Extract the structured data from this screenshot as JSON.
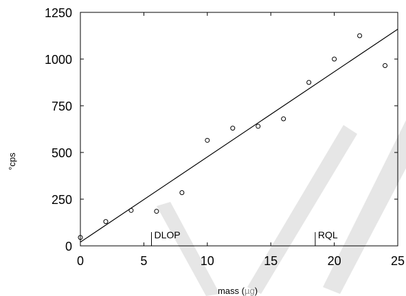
{
  "chart_data": {
    "type": "scatter",
    "title": "",
    "xlabel_prefix": "mass (",
    "xlabel_unit": "µg",
    "xlabel_suffix": ")",
    "ylabel": "°cps",
    "xlim": [
      0,
      25
    ],
    "ylim": [
      0,
      1250
    ],
    "xticks": [
      "0",
      "5",
      "10",
      "15",
      "20",
      "25"
    ],
    "yticks": [
      "0",
      "250",
      "500",
      "750",
      "1000",
      "1250"
    ],
    "points": {
      "x": [
        0,
        2,
        4,
        6,
        8,
        10,
        12,
        14,
        16,
        18,
        20,
        22,
        24
      ],
      "y": [
        45,
        130,
        190,
        185,
        285,
        565,
        630,
        640,
        680,
        875,
        1000,
        1125,
        965
      ]
    },
    "fit_line": {
      "x": [
        0,
        25
      ],
      "y": [
        20,
        1160
      ]
    },
    "markers": [
      {
        "x": 5.6,
        "label": "DLOP"
      },
      {
        "x": 18.5,
        "label": "RQL"
      }
    ],
    "grid": false,
    "legend": "none"
  }
}
